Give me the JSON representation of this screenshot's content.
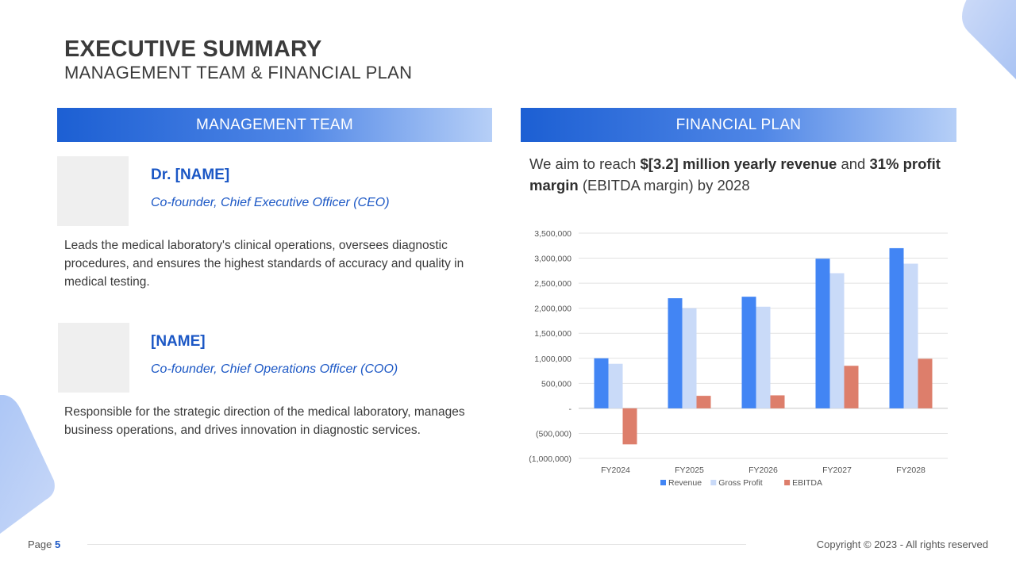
{
  "header": {
    "title": "EXECUTIVE SUMMARY",
    "subtitle": "MANAGEMENT TEAM & FINANCIAL PLAN"
  },
  "team": {
    "heading": "MANAGEMENT TEAM",
    "members": [
      {
        "name": "Dr. [NAME]",
        "role": "Co-founder, Chief Executive Officer (CEO)",
        "description": "Leads the medical laboratory's clinical operations, oversees diagnostic procedures, and ensures the highest standards of accuracy and quality in medical testing."
      },
      {
        "name": "[NAME]",
        "role": "Co-founder, Chief Operations Officer (COO)",
        "description": "Responsible for the strategic direction of the medical laboratory, manages business operations, and drives innovation in diagnostic services."
      }
    ]
  },
  "financial": {
    "heading": "FINANCIAL PLAN",
    "text_1": "We aim to reach ",
    "text_bold_1": "$[3.2] million yearly revenue",
    "text_2": " and ",
    "text_bold_2": "31% profit margin",
    "text_3": " (EBITDA margin) by 2028"
  },
  "chart_data": {
    "type": "bar",
    "categories": [
      "FY2024",
      "FY2025",
      "FY2026",
      "FY2027",
      "FY2028"
    ],
    "series": [
      {
        "name": "Revenue",
        "values": [
          1000000,
          2200000,
          2230000,
          2990000,
          3200000
        ],
        "color": "#4285f4"
      },
      {
        "name": "Gross Profit",
        "values": [
          890000,
          2000000,
          2030000,
          2700000,
          2890000
        ],
        "color": "#c9daf8"
      },
      {
        "name": "EBITDA",
        "values": [
          -720000,
          250000,
          260000,
          850000,
          990000
        ],
        "color": "#dd7e6b"
      }
    ],
    "ylim": [
      -1000000,
      3500000
    ],
    "yticks": [
      3500000,
      3000000,
      2500000,
      2000000,
      1500000,
      1000000,
      500000,
      0,
      -500000,
      -1000000
    ],
    "ytick_labels": [
      "3,500,000",
      "3,000,000",
      "2,500,000",
      "2,000,000",
      "1,500,000",
      "1,000,000",
      "500,000",
      "-",
      "(500,000)",
      "(1,000,000)"
    ],
    "grid": true,
    "legend_position": "bottom"
  },
  "footer": {
    "page_label": "Page",
    "page_number": "5",
    "copyright": "Copyright © 2023 - All rights reserved"
  },
  "colors": {
    "accent": "#1b57c5",
    "header_gradient_start": "#1c5fd3",
    "header_gradient_end": "#b6cff7",
    "decor": "#a9c4f5"
  }
}
